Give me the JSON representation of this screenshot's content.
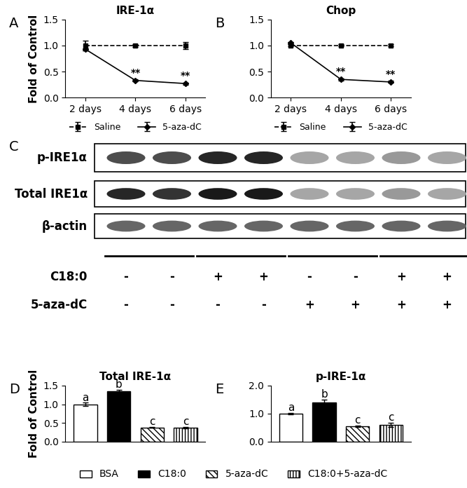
{
  "chart_data": [
    {
      "panel": "A",
      "type": "line",
      "title": "IRE-1α",
      "y_label": "Fold of Control",
      "categories": [
        "2 days",
        "4 days",
        "6 days"
      ],
      "series": [
        {
          "name": "Saline",
          "color": "#000000",
          "line_style": "dashed",
          "marker": "square",
          "values": [
            1.0,
            1.0,
            1.0
          ],
          "errors": [
            0.1,
            0.03,
            0.07
          ]
        },
        {
          "name": "5-aza-dC",
          "color": "#000000",
          "line_style": "solid",
          "marker": "diamond",
          "values": [
            0.93,
            0.33,
            0.27
          ],
          "errors": [
            0.02,
            0.02,
            0.02
          ]
        }
      ],
      "annotations": [
        {
          "text": "**",
          "category": "4 days",
          "series": "5-aza-dC"
        },
        {
          "text": "**",
          "category": "6 days",
          "series": "5-aza-dC"
        }
      ],
      "ylim": [
        0,
        1.5
      ],
      "yticks": [
        {
          "value": 0,
          "label": "0.0"
        },
        {
          "value": 0.5,
          "label": "0.5"
        },
        {
          "value": 1.0,
          "label": "1.0"
        },
        {
          "value": 1.5,
          "label": "1.5"
        }
      ],
      "legend": "below"
    },
    {
      "panel": "B",
      "type": "line",
      "title": "Chop",
      "categories": [
        "2 days",
        "4 days",
        "6 days"
      ],
      "series": [
        {
          "name": "Saline",
          "color": "#000000",
          "line_style": "dashed",
          "marker": "square",
          "values": [
            1.0,
            1.0,
            1.0
          ],
          "errors": [
            0.02,
            0.02,
            0.02
          ]
        },
        {
          "name": "5-aza-dC",
          "color": "#000000",
          "line_style": "solid",
          "marker": "diamond",
          "values": [
            1.05,
            0.35,
            0.3
          ],
          "errors": [
            0.02,
            0.02,
            0.02
          ]
        }
      ],
      "annotations": [
        {
          "text": "**",
          "category": "4 days",
          "series": "5-aza-dC"
        },
        {
          "text": "**",
          "category": "6 days",
          "series": "5-aza-dC"
        }
      ],
      "ylim": [
        0,
        1.5
      ],
      "yticks": [
        {
          "value": 0,
          "label": "0.0"
        },
        {
          "value": 0.5,
          "label": "0.5"
        },
        {
          "value": 1.0,
          "label": "1.0"
        },
        {
          "value": 1.5,
          "label": "1.5"
        }
      ],
      "legend": "below"
    },
    {
      "panel": "D",
      "type": "bar",
      "title": "Total IRE-1α",
      "y_label": "Fold of Control",
      "categories": [
        "BSA",
        "C18:0",
        "5-aza-dC",
        "C18:0+5-aza-dC"
      ],
      "values": [
        1.0,
        1.35,
        0.38,
        0.38
      ],
      "errors": [
        0.04,
        0.04,
        0.01,
        0.02
      ],
      "colors": [
        "#ffffff",
        "#000000",
        "#ffffff",
        "#ffffff"
      ],
      "annotations": [
        "a",
        "b",
        "c",
        "c"
      ],
      "ylim": [
        0,
        1.5
      ],
      "yticks": [
        {
          "value": 0,
          "label": "0.0"
        },
        {
          "value": 0.5,
          "label": "0.5"
        },
        {
          "value": 1.0,
          "label": "1.0"
        },
        {
          "value": 1.5,
          "label": "1.5"
        }
      ],
      "tick_labels": "y",
      "legend": "lower center"
    },
    {
      "panel": "E",
      "type": "bar",
      "title": "p-IRE-1α",
      "categories": [
        "BSA",
        "C18:0",
        "5-aza-dC",
        "C18:0+5-aza-dC"
      ],
      "values": [
        1.0,
        1.4,
        0.55,
        0.6
      ],
      "errors": [
        0.03,
        0.1,
        0.03,
        0.08
      ],
      "colors": [
        "#ffffff",
        "#000000",
        "#ffffff",
        "#ffffff"
      ],
      "annotations": [
        "a",
        "b",
        "c",
        "c"
      ],
      "ylim": [
        0,
        2.0
      ],
      "yticks": [
        {
          "value": 0,
          "label": "0.0"
        },
        {
          "value": 1.0,
          "label": "1.0"
        },
        {
          "value": 2.0,
          "label": "2.0"
        }
      ],
      "tick_labels": "y"
    }
  ],
  "blot": {
    "panel": "C",
    "rows": [
      {
        "label": "p-IRE1α",
        "intensity": [
          0.7,
          0.7,
          0.85,
          0.85,
          0.35,
          0.35,
          0.4,
          0.35
        ]
      },
      {
        "label": "Total IRE1α",
        "intensity": [
          0.85,
          0.8,
          0.9,
          0.9,
          0.35,
          0.35,
          0.4,
          0.35
        ]
      },
      {
        "label": "β-actin",
        "intensity": [
          0.6,
          0.6,
          0.6,
          0.6,
          0.6,
          0.6,
          0.6,
          0.6
        ]
      }
    ],
    "treatments": [
      {
        "label": "C18:0",
        "values": [
          "-",
          "-",
          "+",
          "+",
          "-",
          "-",
          "+",
          "+"
        ]
      },
      {
        "label": "5-aza-dC",
        "values": [
          "-",
          "-",
          "-",
          "-",
          "+",
          "+",
          "+",
          "+"
        ]
      }
    ]
  }
}
